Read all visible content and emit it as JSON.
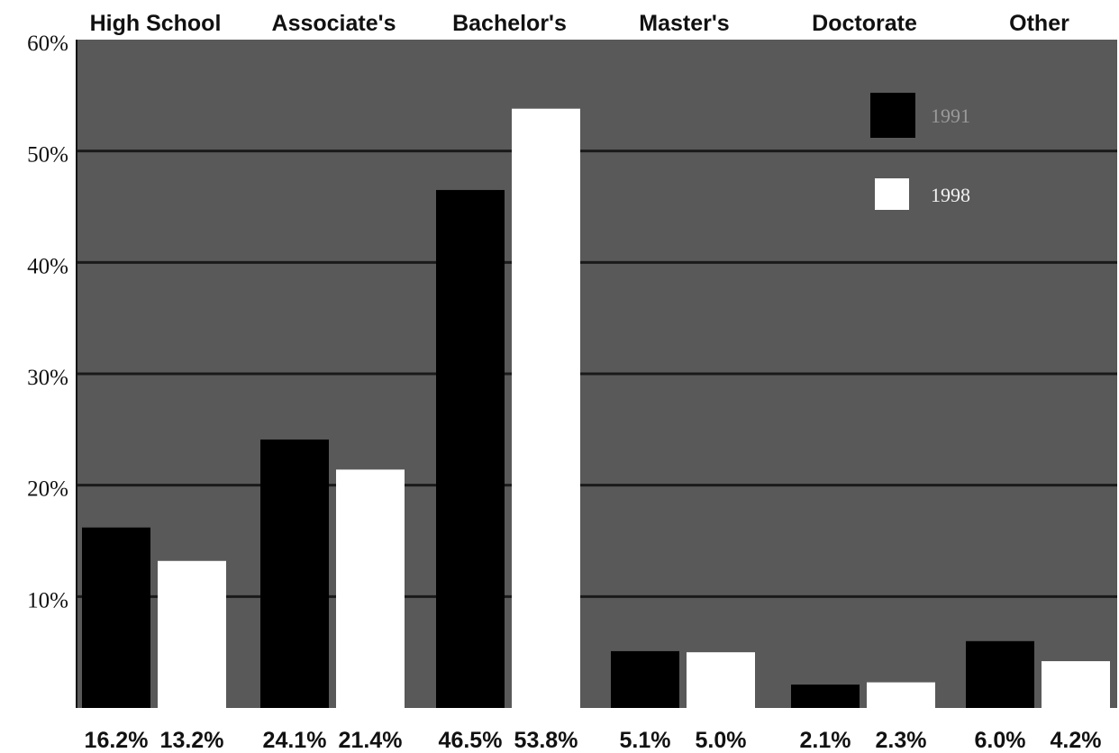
{
  "chart_data": {
    "type": "bar",
    "categories": [
      "High School",
      "Associate's",
      "Bachelor's",
      "Master's",
      "Doctorate",
      "Other"
    ],
    "series": [
      {
        "name": "1991",
        "values": [
          16.2,
          24.1,
          46.5,
          5.1,
          2.1,
          6.0
        ],
        "color": "#000000",
        "labels": [
          "16.2%",
          "24.1%",
          "46.5%",
          "5.1%",
          "2.1%",
          "6.0%"
        ]
      },
      {
        "name": "1998",
        "values": [
          13.2,
          21.4,
          53.8,
          5.0,
          2.3,
          4.2
        ],
        "color": "#ffffff",
        "labels": [
          "13.2%",
          "21.4%",
          "53.8%",
          "5.0%",
          "2.3%",
          "4.2%"
        ]
      }
    ],
    "ylim": [
      0,
      60
    ],
    "yticks": [
      {
        "value": 10,
        "label": "10%"
      },
      {
        "value": 20,
        "label": "20%"
      },
      {
        "value": 30,
        "label": "30%"
      },
      {
        "value": 40,
        "label": "40%"
      },
      {
        "value": 50,
        "label": "50%"
      },
      {
        "value": 60,
        "label": "60%"
      }
    ],
    "grid": true,
    "legend_position": "top-right",
    "plot_background": "#595959",
    "gridline_color": "#1a1a1a",
    "legend_text_colors": [
      "#9a9a9a",
      "#f2f2f2"
    ]
  }
}
